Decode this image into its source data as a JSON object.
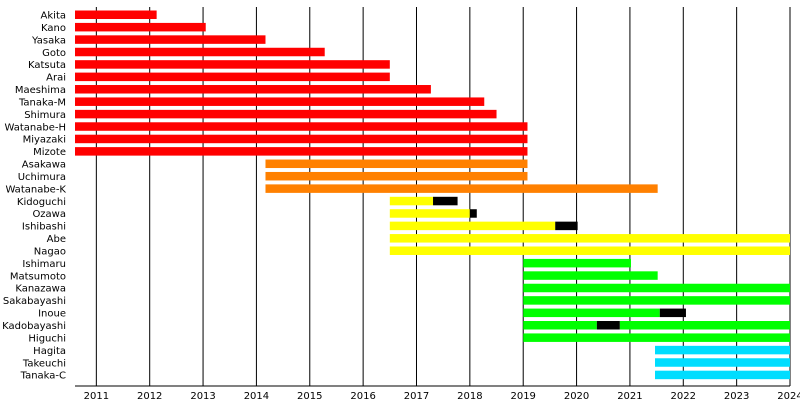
{
  "chart_data": {
    "type": "bar",
    "subtype": "timeline",
    "xlim": [
      2010.6,
      2024
    ],
    "x_ticks": [
      2011,
      2012,
      2013,
      2014,
      2015,
      2016,
      2017,
      2018,
      2019,
      2020,
      2021,
      2022,
      2023,
      2024
    ],
    "grid": "vertical",
    "colors": {
      "red": "#ff0000",
      "orange": "#ff8000",
      "yellow": "#ffff00",
      "green": "#00ff00",
      "cyan": "#00ddff",
      "black": "#000000"
    },
    "members": [
      {
        "name": "Akita",
        "color": "red",
        "segments": [
          [
            2010.6,
            2012.13
          ]
        ]
      },
      {
        "name": "Kano",
        "color": "red",
        "segments": [
          [
            2010.6,
            2013.05
          ]
        ]
      },
      {
        "name": "Yasaka",
        "color": "red",
        "segments": [
          [
            2010.6,
            2014.17
          ]
        ]
      },
      {
        "name": "Goto",
        "color": "red",
        "segments": [
          [
            2010.6,
            2015.28
          ]
        ]
      },
      {
        "name": "Katsuta",
        "color": "red",
        "segments": [
          [
            2010.6,
            2016.5
          ]
        ]
      },
      {
        "name": "Arai",
        "color": "red",
        "segments": [
          [
            2010.6,
            2016.5
          ]
        ]
      },
      {
        "name": "Maeshima",
        "color": "red",
        "segments": [
          [
            2010.6,
            2017.27
          ]
        ]
      },
      {
        "name": "Tanaka-M",
        "color": "red",
        "segments": [
          [
            2010.6,
            2018.27
          ]
        ]
      },
      {
        "name": "Shimura",
        "color": "red",
        "segments": [
          [
            2010.6,
            2018.5
          ]
        ]
      },
      {
        "name": "Watanabe-H",
        "color": "red",
        "segments": [
          [
            2010.6,
            2019.08
          ]
        ]
      },
      {
        "name": "Miyazaki",
        "color": "red",
        "segments": [
          [
            2010.6,
            2019.08
          ]
        ]
      },
      {
        "name": "Mizote",
        "color": "red",
        "segments": [
          [
            2010.6,
            2019.08
          ]
        ]
      },
      {
        "name": "Asakawa",
        "color": "orange",
        "segments": [
          [
            2014.17,
            2019.08
          ]
        ]
      },
      {
        "name": "Uchimura",
        "color": "orange",
        "segments": [
          [
            2014.17,
            2019.08
          ]
        ]
      },
      {
        "name": "Watanabe-K",
        "color": "orange",
        "segments": [
          [
            2014.17,
            2021.52
          ]
        ]
      },
      {
        "name": "Kidoguchi",
        "color": "yellow",
        "segments": [
          [
            2016.5,
            2017.31
          ]
        ],
        "hiatus": [
          [
            2017.31,
            2017.77
          ]
        ]
      },
      {
        "name": "Ozawa",
        "color": "yellow",
        "segments": [
          [
            2016.5,
            2018.0
          ]
        ],
        "hiatus": [
          [
            2018.0,
            2018.13
          ]
        ]
      },
      {
        "name": "Ishibashi",
        "color": "yellow",
        "segments": [
          [
            2016.5,
            2019.6
          ]
        ],
        "hiatus": [
          [
            2019.6,
            2020.02
          ]
        ]
      },
      {
        "name": "Abe",
        "color": "yellow",
        "segments": [
          [
            2016.5,
            2024
          ]
        ]
      },
      {
        "name": "Nagao",
        "color": "yellow",
        "segments": [
          [
            2016.5,
            2024
          ]
        ]
      },
      {
        "name": "Ishimaru",
        "color": "green",
        "segments": [
          [
            2019.0,
            2021.02
          ]
        ]
      },
      {
        "name": "Matsumoto",
        "color": "green",
        "segments": [
          [
            2019.0,
            2021.52
          ]
        ]
      },
      {
        "name": "Kanazawa",
        "color": "green",
        "segments": [
          [
            2019.0,
            2024
          ]
        ]
      },
      {
        "name": "Sakabayashi",
        "color": "green",
        "segments": [
          [
            2019.0,
            2024
          ]
        ]
      },
      {
        "name": "Inoue",
        "color": "green",
        "segments": [
          [
            2019.0,
            2021.56
          ]
        ],
        "hiatus": [
          [
            2021.56,
            2022.05
          ]
        ]
      },
      {
        "name": "Kadobayashi",
        "color": "green",
        "segments": [
          [
            2019.0,
            2020.38
          ],
          [
            2020.81,
            2024
          ]
        ],
        "hiatus": [
          [
            2020.38,
            2020.81
          ]
        ]
      },
      {
        "name": "Higuchi",
        "color": "green",
        "segments": [
          [
            2019.0,
            2024
          ]
        ]
      },
      {
        "name": "Hagita",
        "color": "cyan",
        "segments": [
          [
            2021.47,
            2024
          ]
        ]
      },
      {
        "name": "Takeuchi",
        "color": "cyan",
        "segments": [
          [
            2021.47,
            2024
          ]
        ]
      },
      {
        "name": "Tanaka-C",
        "color": "cyan",
        "segments": [
          [
            2021.47,
            2024
          ]
        ]
      }
    ]
  }
}
